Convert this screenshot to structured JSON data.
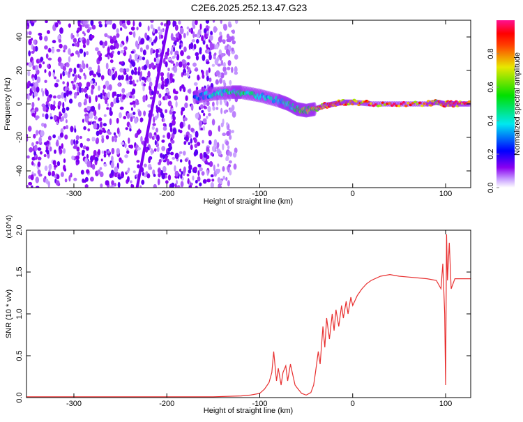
{
  "chart_data": [
    {
      "type": "heatmap",
      "title": "C2E6.2025.252.13.47.G23",
      "xlabel": "Height of straight line (km)",
      "ylabel": "Frequency (Hz)",
      "xlim": [
        -351,
        127
      ],
      "ylim": [
        -50,
        50
      ],
      "xticks": [
        "-300",
        "-200",
        "-100",
        "0",
        "100"
      ],
      "xtick_values": [
        -300,
        -200,
        -100,
        0,
        100
      ],
      "yticks": [
        "40",
        "20",
        "0",
        "-20",
        "-40"
      ],
      "ytick_values": [
        40,
        20,
        0,
        -20,
        -40
      ],
      "colorbar": {
        "label": "Normalized spectral amplitude",
        "ticks": [
          "0.0",
          "0.2",
          "0.4",
          "0.6",
          "0.8"
        ],
        "tick_values": [
          0,
          0.2,
          0.4,
          0.6,
          0.8
        ],
        "range": [
          0,
          1
        ]
      },
      "noise_region_x": [
        -351,
        -140
      ],
      "streak": {
        "x": [
          -232,
          -198
        ],
        "y": [
          -50,
          50
        ]
      },
      "ridge": {
        "x": [
          -170,
          -150,
          -130,
          -120,
          -100,
          -80,
          -70,
          -60,
          -50,
          -40,
          -30,
          -20,
          -10,
          0,
          20,
          50,
          80,
          90,
          100,
          110,
          127
        ],
        "y": [
          4,
          6,
          7,
          7,
          5,
          2,
          0,
          -3,
          -4,
          -3,
          -1,
          0,
          1,
          1,
          0,
          0,
          0,
          1,
          0,
          0,
          0
        ],
        "amplitude": [
          0.3,
          0.4,
          0.5,
          0.5,
          0.45,
          0.4,
          0.45,
          0.5,
          0.7,
          0.8,
          0.85,
          0.9,
          0.9,
          0.85,
          0.9,
          0.95,
          0.95,
          0.8,
          0.9,
          0.95,
          0.95
        ]
      }
    },
    {
      "type": "line",
      "xlabel": "Height of straight line (km)",
      "ylabel": "SNR (10 * v/v)",
      "y_multiplier": "(x10^4)",
      "xlim": [
        -351,
        127
      ],
      "ylim": [
        0,
        2.0
      ],
      "xticks": [
        "-300",
        "-200",
        "-100",
        "0",
        "100"
      ],
      "xtick_values": [
        -300,
        -200,
        -100,
        0,
        100
      ],
      "yticks": [
        "0.0",
        "0.5",
        "1.0",
        "1.5",
        "2.0"
      ],
      "ytick_values": [
        0,
        0.5,
        1.0,
        1.5,
        2.0
      ],
      "color": "#e83030",
      "x": [
        -351,
        -300,
        -250,
        -200,
        -150,
        -120,
        -110,
        -100,
        -95,
        -90,
        -87,
        -85,
        -82,
        -80,
        -77,
        -75,
        -72,
        -70,
        -67,
        -65,
        -62,
        -60,
        -55,
        -50,
        -45,
        -42,
        -40,
        -37,
        -35,
        -32,
        -30,
        -28,
        -25,
        -22,
        -20,
        -18,
        -15,
        -12,
        -10,
        -7,
        -5,
        -2,
        0,
        5,
        10,
        15,
        20,
        30,
        40,
        50,
        60,
        70,
        80,
        90,
        95,
        97,
        99,
        100,
        101,
        102,
        104,
        106,
        110,
        127
      ],
      "y": [
        0.01,
        0.01,
        0.01,
        0.01,
        0.01,
        0.02,
        0.03,
        0.05,
        0.1,
        0.18,
        0.3,
        0.55,
        0.2,
        0.35,
        0.15,
        0.3,
        0.38,
        0.2,
        0.4,
        0.3,
        0.15,
        0.12,
        0.05,
        0.03,
        0.06,
        0.15,
        0.3,
        0.55,
        0.4,
        0.85,
        0.6,
        0.95,
        0.7,
        1.0,
        0.8,
        1.05,
        0.85,
        1.1,
        0.95,
        1.15,
        1.0,
        1.2,
        1.1,
        1.22,
        1.3,
        1.36,
        1.4,
        1.45,
        1.47,
        1.45,
        1.44,
        1.43,
        1.42,
        1.4,
        1.3,
        1.6,
        1.0,
        0.15,
        1.95,
        1.4,
        1.85,
        1.3,
        1.42,
        1.42
      ]
    }
  ]
}
